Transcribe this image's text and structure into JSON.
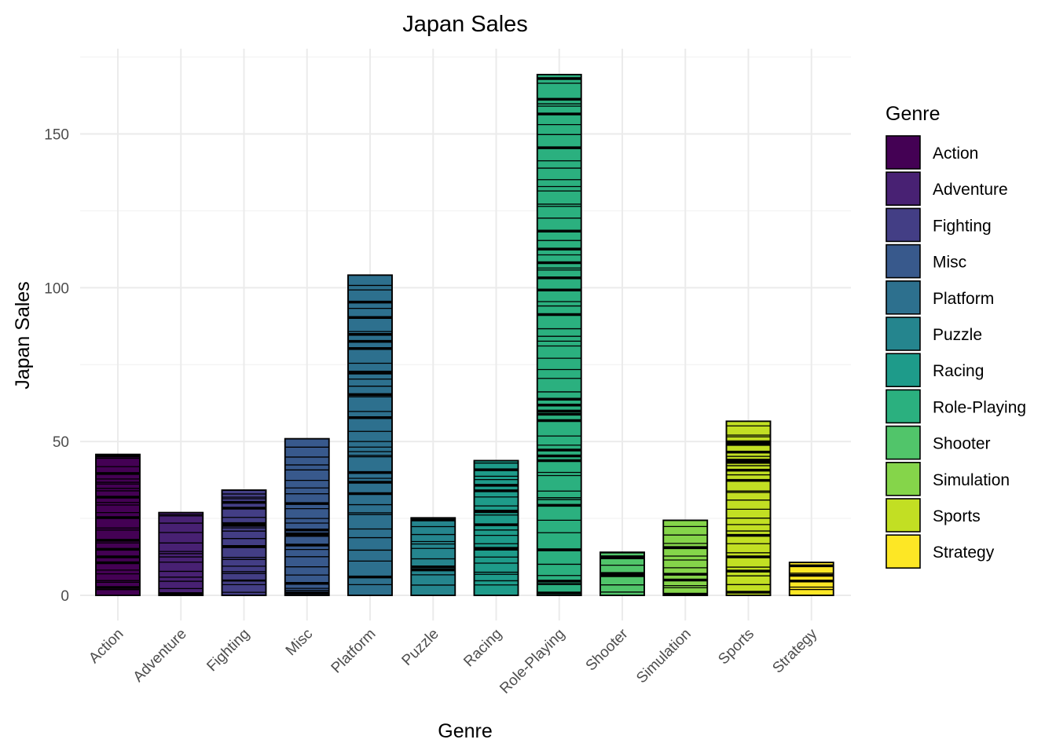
{
  "chart_data": {
    "type": "bar",
    "title": "Japan Sales",
    "xlabel": "Genre",
    "ylabel": "Japan Sales",
    "ylim": [
      -7,
      175
    ],
    "yticks": [
      0,
      50,
      100,
      150
    ],
    "grid": true,
    "legend": {
      "title": "Genre",
      "position": "right"
    },
    "categories": [
      "Action",
      "Adventure",
      "Fighting",
      "Misc",
      "Platform",
      "Puzzle",
      "Racing",
      "Role-Playing",
      "Shooter",
      "Simulation",
      "Sports",
      "Strategy"
    ],
    "values": [
      45.8,
      26.9,
      34.2,
      50.9,
      104.1,
      25.2,
      43.8,
      169.3,
      14.0,
      24.4,
      56.6,
      10.7
    ],
    "colors": [
      "#440154",
      "#482173",
      "#433E85",
      "#38598C",
      "#2D708E",
      "#25858E",
      "#1E9B8A",
      "#2BB07F",
      "#51C56A",
      "#85D54A",
      "#C2DF23",
      "#FDE725"
    ]
  }
}
